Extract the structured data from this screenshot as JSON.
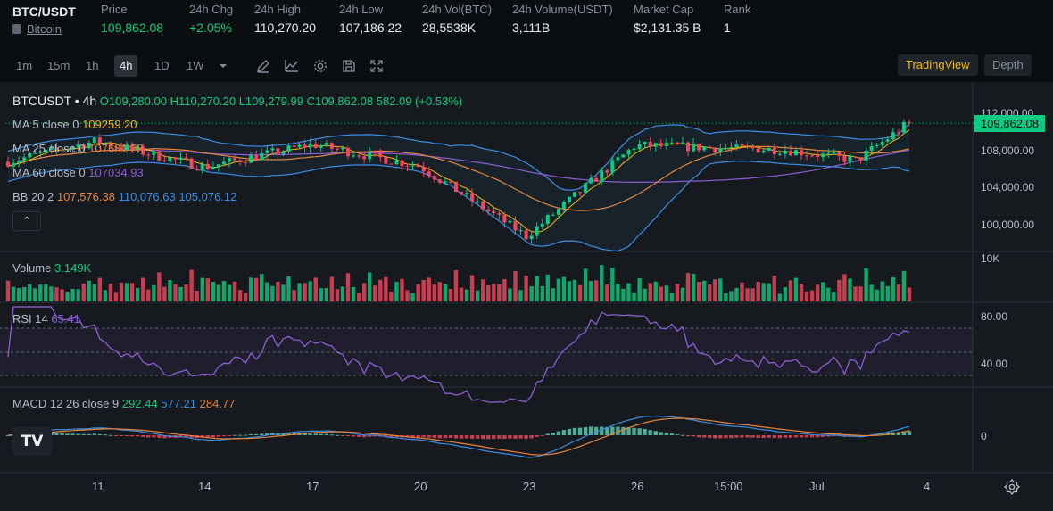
{
  "ticker": {
    "pair": "BTC/USDT",
    "coin_name": "Bitcoin",
    "stats": [
      {
        "label": "Price",
        "value": "109,862.08",
        "green": true
      },
      {
        "label": "24h Chg",
        "value": "+2.05%",
        "green": true
      },
      {
        "label": "24h High",
        "value": "110,270.20"
      },
      {
        "label": "24h Low",
        "value": "107,186.22"
      },
      {
        "label": "24h Vol(BTC)",
        "value": "28,5538K"
      },
      {
        "label": "24h Volume(USDT)",
        "value": "3,111B"
      },
      {
        "label": "Market Cap",
        "value": "$2,131.35 B"
      },
      {
        "label": "Rank",
        "value": "1"
      }
    ]
  },
  "toolbar": {
    "timeframes": [
      "1m",
      "15m",
      "1h",
      "4h",
      "1D",
      "1W"
    ],
    "active_timeframe": "4h",
    "tools": [
      "chevron-down-icon",
      "pencil-icon",
      "line-chart-icon",
      "gear-icon",
      "save-icon",
      "fullscreen-icon"
    ],
    "tradingview_label": "TradingView",
    "depth_label": "Depth"
  },
  "legend": {
    "symbol": "BTCUSDT",
    "interval": "4h",
    "open": "O109,280.00",
    "high": "H110,270.20",
    "low": "L109,279.99",
    "close": "C109,862.08",
    "change": "582.09 (+0.53%)",
    "ma5_label": "MA 5 close 0",
    "ma5_value": "109259.20",
    "ma25_label": "MA 25 close 0",
    "ma25_value": "107681.28",
    "ma60_label": "MA 60 close 0",
    "ma60_value": "107034.93",
    "bb_label": "BB 20 2",
    "bb_mid": "107,576.38",
    "bb_up": "110,076.63",
    "bb_low": "105,076.12",
    "volume_label": "Volume",
    "volume_value": "3.149K",
    "rsi_label": "RSI 14",
    "rsi_value": "65.41",
    "macd_label": "MACD 12 26 close 9",
    "macd_hist": "292.44",
    "macd_line": "577.21",
    "macd_signal": "284.77"
  },
  "collapse_glyph": "⌃",
  "current_price": "109,862.08",
  "price_axis": [
    "112,000.00",
    "108,000.00",
    "104,000.00",
    "100,000.00"
  ],
  "volume_axis": [
    "10K"
  ],
  "rsi_axis": [
    "80.00",
    "40.00"
  ],
  "macd_axis": [
    "0"
  ],
  "time_axis": [
    "11",
    "14",
    "17",
    "20",
    "23",
    "26",
    "15:00",
    "Jul",
    "4"
  ],
  "tv_logo_text": "TV",
  "colors": {
    "up": "#0ecb81",
    "down": "#f6465d",
    "ma5": "#f0b90b",
    "ma25": "#e8843c",
    "ma60": "#8c5fd6",
    "bb": "#3a8ee6",
    "rsi": "#8c5fd6",
    "macd_line": "#3a8ee6",
    "macd_signal": "#e8843c",
    "accent": "#f0b90b"
  },
  "chart_data": {
    "type": "line",
    "series": [
      {
        "name": "BTCUSDT",
        "x": [
          "11",
          "14",
          "17",
          "20",
          "23",
          "26",
          "15:00",
          "Jul",
          "4"
        ],
        "values": [
          108200,
          105800,
          107900,
          105900,
          99400,
          107800,
          107400,
          106400,
          109862
        ]
      }
    ],
    "ylim": [
      98000,
      113000
    ]
  }
}
